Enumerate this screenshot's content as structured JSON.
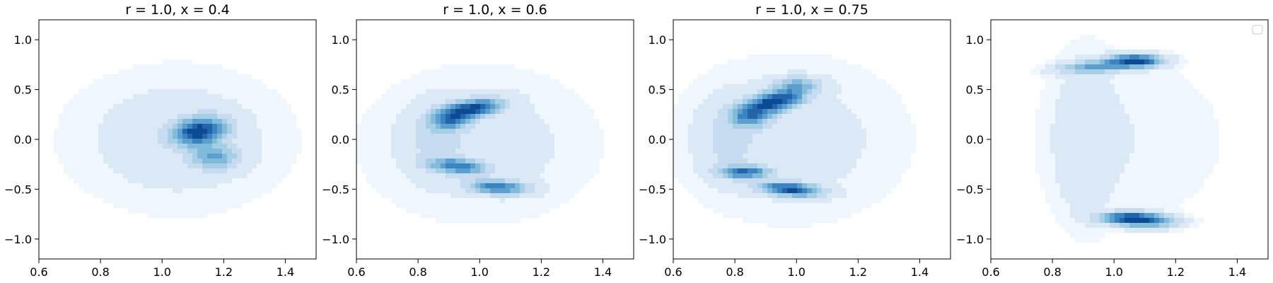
{
  "figure": {
    "background": "#ffffff",
    "colormap": "Blues",
    "contour_fill_colors": [
      "#eff6fd",
      "#dbe9f6",
      "#c6dbef",
      "#a6cee4",
      "#81badb",
      "#5c9fcf",
      "#3b84c2",
      "#2364ab",
      "#0c4a93"
    ]
  },
  "chart_data": [
    {
      "type": "contour",
      "title": "r = 1.0, x = 0.4",
      "xlim": [
        0.6,
        1.5
      ],
      "ylim": [
        -1.2,
        1.2
      ],
      "xticks": [
        0.6,
        0.8,
        1.0,
        1.2,
        1.4
      ],
      "xtick_labels": [
        "0.6",
        "0.8",
        "1.0",
        "1.2",
        "1.4"
      ],
      "yticks": [
        -1.0,
        -0.5,
        0.0,
        0.5,
        1.0
      ],
      "ytick_labels": [
        "−1.0",
        "−0.5",
        "0.0",
        "0.5",
        "1.0"
      ],
      "legend": false,
      "clusters": [
        {
          "cx": 1.12,
          "cy": 0.08,
          "sx": 0.055,
          "sy": 0.09,
          "weight": 1.0,
          "rho": 0.2
        },
        {
          "cx": 1.17,
          "cy": -0.18,
          "sx": 0.05,
          "sy": 0.08,
          "weight": 0.45,
          "rho": 0.0
        },
        {
          "cx": 1.05,
          "cy": 0.0,
          "sx": 0.28,
          "sy": 0.55,
          "weight": 0.09,
          "rho": 0.0
        }
      ]
    },
    {
      "type": "contour",
      "title": "r = 1.0, x = 0.6",
      "xlim": [
        0.6,
        1.5
      ],
      "ylim": [
        -1.2,
        1.2
      ],
      "xticks": [
        0.6,
        0.8,
        1.0,
        1.2,
        1.4
      ],
      "xtick_labels": [
        "0.6",
        "0.8",
        "1.0",
        "1.2",
        "1.4"
      ],
      "yticks": [
        -1.0,
        -0.5,
        0.0,
        0.5,
        1.0
      ],
      "ytick_labels": [
        "−1.0",
        "−0.5",
        "0.0",
        "0.5",
        "1.0"
      ],
      "legend": false,
      "clusters": [
        {
          "cx": 0.97,
          "cy": 0.3,
          "sx": 0.06,
          "sy": 0.065,
          "weight": 1.0,
          "rho": 0.45
        },
        {
          "cx": 0.9,
          "cy": 0.18,
          "sx": 0.04,
          "sy": 0.06,
          "weight": 0.5,
          "rho": 0.0
        },
        {
          "cx": 0.93,
          "cy": -0.27,
          "sx": 0.06,
          "sy": 0.05,
          "weight": 0.65,
          "rho": -0.3
        },
        {
          "cx": 1.06,
          "cy": -0.48,
          "sx": 0.06,
          "sy": 0.045,
          "weight": 0.7,
          "rho": -0.2
        },
        {
          "cx": 0.86,
          "cy": 0.0,
          "sx": 0.06,
          "sy": 0.22,
          "weight": 0.14,
          "rho": 0.0
        },
        {
          "cx": 1.0,
          "cy": -0.05,
          "sx": 0.3,
          "sy": 0.6,
          "weight": 0.08,
          "rho": 0.0
        }
      ]
    },
    {
      "type": "contour",
      "title": "r = 1.0, x = 0.75",
      "xlim": [
        0.6,
        1.5
      ],
      "ylim": [
        -1.2,
        1.2
      ],
      "xticks": [
        0.6,
        0.8,
        1.0,
        1.2,
        1.4
      ],
      "xtick_labels": [
        "0.6",
        "0.8",
        "1.0",
        "1.2",
        "1.4"
      ],
      "yticks": [
        -1.0,
        -0.5,
        0.0,
        0.5,
        1.0
      ],
      "ytick_labels": [
        "−1.0",
        "−0.5",
        "0.0",
        "0.5",
        "1.0"
      ],
      "legend": false,
      "clusters": [
        {
          "cx": 0.93,
          "cy": 0.38,
          "sx": 0.06,
          "sy": 0.08,
          "weight": 1.0,
          "rho": 0.5
        },
        {
          "cx": 0.85,
          "cy": 0.23,
          "sx": 0.04,
          "sy": 0.07,
          "weight": 0.55,
          "rho": 0.0
        },
        {
          "cx": 1.0,
          "cy": 0.55,
          "sx": 0.05,
          "sy": 0.05,
          "weight": 0.35,
          "rho": 0.0
        },
        {
          "cx": 0.83,
          "cy": -0.33,
          "sx": 0.05,
          "sy": 0.04,
          "weight": 0.75,
          "rho": 0.0
        },
        {
          "cx": 0.98,
          "cy": -0.5,
          "sx": 0.06,
          "sy": 0.045,
          "weight": 0.95,
          "rho": -0.3
        },
        {
          "cx": 0.78,
          "cy": 0.0,
          "sx": 0.06,
          "sy": 0.25,
          "weight": 0.14,
          "rho": 0.0
        },
        {
          "cx": 0.98,
          "cy": 0.0,
          "sx": 0.3,
          "sy": 0.65,
          "weight": 0.08,
          "rho": 0.0
        }
      ]
    },
    {
      "type": "contour",
      "title": "",
      "xlim": [
        0.6,
        1.5
      ],
      "ylim": [
        -1.2,
        1.2
      ],
      "xticks": [
        0.6,
        0.8,
        1.0,
        1.2,
        1.4
      ],
      "xtick_labels": [
        "0.6",
        "0.8",
        "1.0",
        "1.2",
        "1.4"
      ],
      "yticks": [
        -1.0,
        -0.5,
        0.0,
        0.5,
        1.0
      ],
      "ytick_labels": [
        "−1.0",
        "−0.5",
        "0.0",
        "0.5",
        "1.0"
      ],
      "legend": true,
      "legend_position": "upper right",
      "clusters": [
        {
          "cx": 1.07,
          "cy": 0.79,
          "sx": 0.055,
          "sy": 0.04,
          "weight": 1.0,
          "rho": 0.0
        },
        {
          "cx": 0.95,
          "cy": 0.73,
          "sx": 0.08,
          "sy": 0.04,
          "weight": 0.55,
          "rho": 0.3
        },
        {
          "cx": 1.05,
          "cy": -0.79,
          "sx": 0.06,
          "sy": 0.04,
          "weight": 1.0,
          "rho": 0.0
        },
        {
          "cx": 1.12,
          "cy": -0.83,
          "sx": 0.06,
          "sy": 0.04,
          "weight": 0.5,
          "rho": 0.0
        },
        {
          "cx": 0.9,
          "cy": 0.0,
          "sx": 0.06,
          "sy": 0.55,
          "weight": 0.09,
          "rho": 0.0
        },
        {
          "cx": 1.05,
          "cy": 0.0,
          "sx": 0.28,
          "sy": 0.75,
          "weight": 0.06,
          "rho": 0.0
        }
      ]
    }
  ]
}
